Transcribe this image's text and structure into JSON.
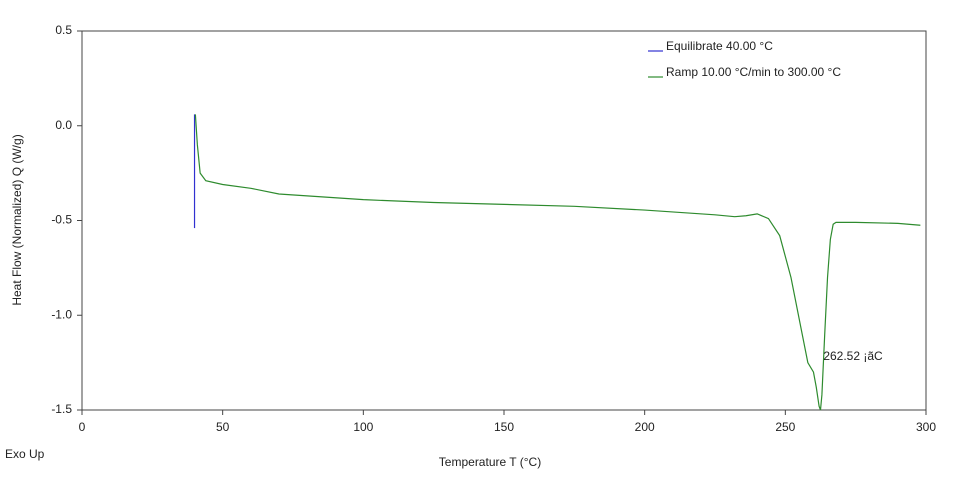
{
  "chart_data": {
    "type": "line",
    "xlabel": "Temperature T (°C)",
    "ylabel": "Heat Flow (Normalized) Q (W/g)",
    "corner_note": "Exo Up",
    "annotation": {
      "text": "262.52 ¡ãC",
      "x": 263.5,
      "y": -1.22,
      "color": "#2e8b2e"
    },
    "xlim": [
      0,
      300
    ],
    "ylim": [
      -1.5,
      0.5
    ],
    "xticks": [
      0,
      50,
      100,
      150,
      200,
      250,
      300
    ],
    "yticks": [
      0.5,
      {
        "value": 0,
        "label": "0.0"
      },
      -0.5,
      {
        "value": -1,
        "label": "-1.0"
      },
      -1.5
    ],
    "legend": "top-right",
    "series": [
      {
        "name": "Equilibrate 40.00 °C",
        "color": "#3030d0",
        "x": [
          40,
          40
        ],
        "values": [
          0.06,
          -0.54
        ]
      },
      {
        "name": "Ramp 10.00 °C/min to 300.00 °C",
        "color": "#2e8b2e",
        "x": [
          40.3,
          41,
          42,
          44,
          50,
          60,
          70,
          80,
          100,
          125,
          150,
          175,
          200,
          225,
          232,
          236,
          240,
          244,
          248,
          252,
          256,
          258,
          260,
          261,
          262,
          262.5,
          263,
          264,
          265,
          266,
          267,
          268,
          275,
          290,
          298
        ],
        "values": [
          0.06,
          -0.1,
          -0.25,
          -0.29,
          -0.31,
          -0.33,
          -0.36,
          -0.37,
          -0.39,
          -0.405,
          -0.415,
          -0.425,
          -0.445,
          -0.47,
          -0.48,
          -0.475,
          -0.465,
          -0.49,
          -0.58,
          -0.8,
          -1.1,
          -1.25,
          -1.3,
          -1.38,
          -1.48,
          -1.5,
          -1.42,
          -1.1,
          -0.8,
          -0.6,
          -0.52,
          -0.51,
          -0.51,
          -0.515,
          -0.525
        ]
      }
    ]
  }
}
